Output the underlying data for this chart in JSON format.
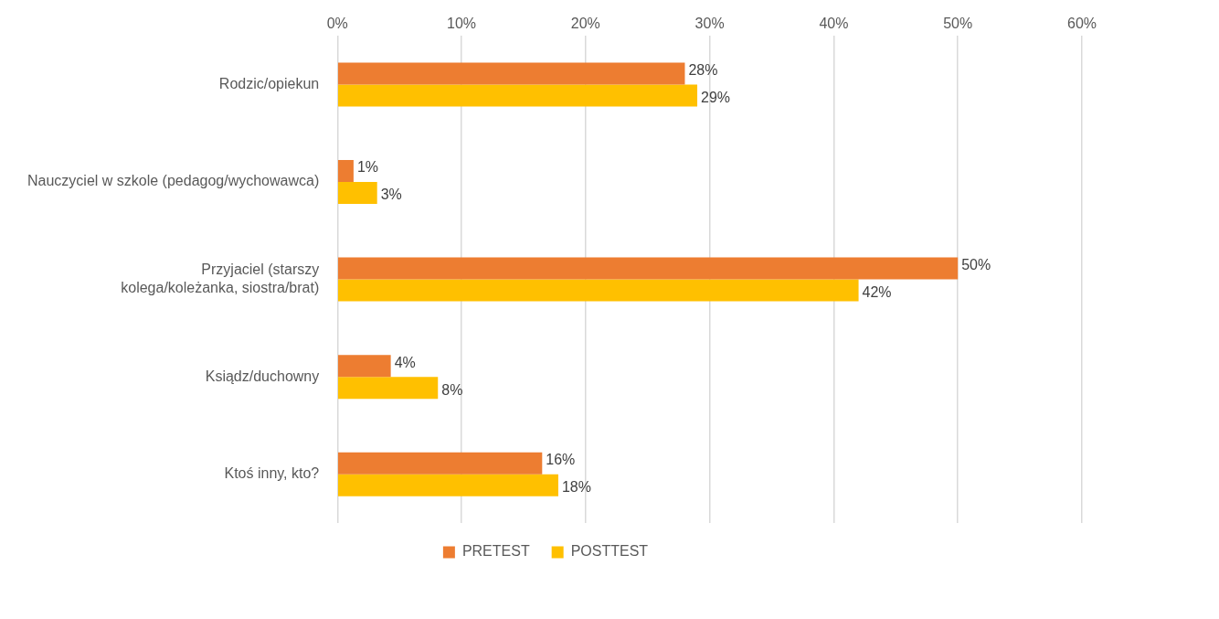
{
  "chart_data": {
    "type": "bar",
    "orientation": "horizontal",
    "categories": [
      "Rodzic/opiekun",
      "Nauczyciel w szkole (pedagog/wychowawca)",
      "Przyjaciel (starszy kolega/koleżanka, siostra/brat)",
      "Ksiądz/duchowny",
      "Ktoś inny, kto?"
    ],
    "series": [
      {
        "name": "PRETEST",
        "color": "#ed7d31",
        "values": [
          28,
          1.3,
          50,
          4.3,
          16.5
        ],
        "value_labels": [
          "28%",
          "1%",
          "50%",
          "4%",
          "16%"
        ]
      },
      {
        "name": "POSTTEST",
        "color": "#ffc000",
        "values": [
          29,
          3.2,
          42,
          8.1,
          17.8
        ],
        "value_labels": [
          "29%",
          "3%",
          "42%",
          "8%",
          "18%"
        ]
      }
    ],
    "xlim": [
      0,
      60
    ],
    "xticks": [
      {
        "value": 0,
        "label": "0%"
      },
      {
        "value": 10,
        "label": "10%"
      },
      {
        "value": 20,
        "label": "20%"
      },
      {
        "value": 30,
        "label": "30%"
      },
      {
        "value": 40,
        "label": "40%"
      },
      {
        "value": 50,
        "label": "50%"
      },
      {
        "value": 60,
        "label": "60%"
      }
    ],
    "grid": "x",
    "legend": "bottom"
  }
}
